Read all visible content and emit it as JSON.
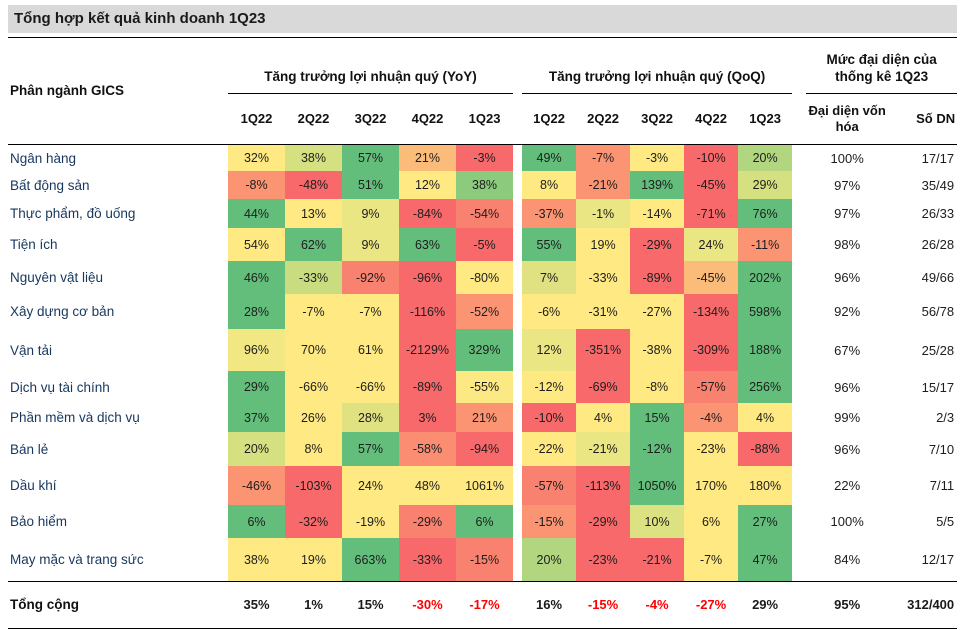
{
  "title": "Tổng hợp kết quả kinh doanh 1Q23",
  "colors": {
    "title_bg": "#D9D9D9",
    "sector_text": "#17375E",
    "negative_total_text": "#FF0000",
    "heatmap_green": "#63BE7B",
    "heatmap_yellow": "#FFE983",
    "heatmap_red": "#F8696B"
  },
  "table": {
    "row_header": "Phân ngành GICS",
    "groups": [
      {
        "label": "Tăng trưởng lợi nhuận quý (YoY)",
        "columns": [
          "1Q22",
          "2Q22",
          "3Q22",
          "4Q22",
          "1Q23"
        ]
      },
      {
        "label": "Tăng trưởng lợi nhuận quý (QoQ)",
        "columns": [
          "1Q22",
          "2Q22",
          "3Q22",
          "4Q22",
          "1Q23"
        ]
      },
      {
        "label": "Mức đại diện của thống kê 1Q23",
        "columns": [
          "Đại diện vốn hóa",
          "Số DN"
        ]
      }
    ],
    "rows": [
      {
        "name": "Ngân hàng",
        "yoy": [
          [
            "32%",
            "#FFE983"
          ],
          [
            "38%",
            "#D5E081"
          ],
          [
            "57%",
            "#63BE7B"
          ],
          [
            "21%",
            "#FBBC79"
          ],
          [
            "-3%",
            "#F8696B"
          ]
        ],
        "qoq": [
          [
            "49%",
            "#63BE7B"
          ],
          [
            "-7%",
            "#FA9473"
          ],
          [
            "-3%",
            "#FFE983"
          ],
          [
            "-10%",
            "#F8696B"
          ],
          [
            "20%",
            "#B1D67F"
          ]
        ],
        "rep": "100%",
        "dn": "17/17"
      },
      {
        "name": "Bất động sản",
        "yoy": [
          [
            "-8%",
            "#FA9473"
          ],
          [
            "-48%",
            "#F8696B"
          ],
          [
            "51%",
            "#63BE7B"
          ],
          [
            "12%",
            "#FFE983"
          ],
          [
            "38%",
            "#8CCB7D"
          ]
        ],
        "qoq": [
          [
            "8%",
            "#FFE983"
          ],
          [
            "-21%",
            "#FA9473"
          ],
          [
            "139%",
            "#63BE7B"
          ],
          [
            "-45%",
            "#F8696B"
          ],
          [
            "29%",
            "#D5E081"
          ]
        ],
        "rep": "97%",
        "dn": "35/49"
      },
      {
        "name": "Thực phẩm, đồ uống",
        "yoy": [
          [
            "44%",
            "#63BE7B"
          ],
          [
            "13%",
            "#FFE983"
          ],
          [
            "9%",
            "#E9E683"
          ],
          [
            "-84%",
            "#F8696B"
          ],
          [
            "-54%",
            "#F9816F"
          ]
        ],
        "qoq": [
          [
            "-37%",
            "#FA9473"
          ],
          [
            "-1%",
            "#E9E683"
          ],
          [
            "-14%",
            "#FFE983"
          ],
          [
            "-71%",
            "#F8696B"
          ],
          [
            "76%",
            "#63BE7B"
          ]
        ],
        "rep": "97%",
        "dn": "26/33"
      },
      {
        "name": "Tiện ích",
        "yoy": [
          [
            "54%",
            "#FFE983"
          ],
          [
            "62%",
            "#63BE7B"
          ],
          [
            "9%",
            "#E9E683"
          ],
          [
            "63%",
            "#63BE7B"
          ],
          [
            "-5%",
            "#F8696B"
          ]
        ],
        "qoq": [
          [
            "55%",
            "#63BE7B"
          ],
          [
            "19%",
            "#FFE983"
          ],
          [
            "-29%",
            "#F8696B"
          ],
          [
            "24%",
            "#E9E683"
          ],
          [
            "-11%",
            "#FA9473"
          ]
        ],
        "rep": "98%",
        "dn": "26/28"
      },
      {
        "name": "Nguyên vật liệu",
        "yoy": [
          [
            "46%",
            "#63BE7B"
          ],
          [
            "-33%",
            "#C9DC80"
          ],
          [
            "-92%",
            "#F9816F"
          ],
          [
            "-96%",
            "#F8696B"
          ],
          [
            "-80%",
            "#FFE983"
          ]
        ],
        "qoq": [
          [
            "7%",
            "#E0E282"
          ],
          [
            "-33%",
            "#FFE983"
          ],
          [
            "-89%",
            "#F8696B"
          ],
          [
            "-45%",
            "#FBBC79"
          ],
          [
            "202%",
            "#63BE7B"
          ]
        ],
        "rep": "96%",
        "dn": "49/66"
      },
      {
        "name": "Xây dựng cơ bản",
        "yoy": [
          [
            "28%",
            "#63BE7B"
          ],
          [
            "-7%",
            "#FFE983"
          ],
          [
            "-7%",
            "#FFE983"
          ],
          [
            "-116%",
            "#F8696B"
          ],
          [
            "-52%",
            "#FA9473"
          ]
        ],
        "qoq": [
          [
            "-6%",
            "#FFE983"
          ],
          [
            "-31%",
            "#FFE983"
          ],
          [
            "-27%",
            "#FFE983"
          ],
          [
            "-134%",
            "#F8696B"
          ],
          [
            "598%",
            "#63BE7B"
          ]
        ],
        "rep": "92%",
        "dn": "56/78"
      },
      {
        "name": "Vận tải",
        "yoy": [
          [
            "96%",
            "#F1E884"
          ],
          [
            "70%",
            "#FFE983"
          ],
          [
            "61%",
            "#FFE983"
          ],
          [
            "-2129%",
            "#F8696B"
          ],
          [
            "329%",
            "#63BE7B"
          ]
        ],
        "qoq": [
          [
            "12%",
            "#E9E683"
          ],
          [
            "-351%",
            "#F8696B"
          ],
          [
            "-38%",
            "#FFE983"
          ],
          [
            "-309%",
            "#F8696B"
          ],
          [
            "188%",
            "#63BE7B"
          ]
        ],
        "rep": "67%",
        "dn": "25/28"
      },
      {
        "name": "Dịch vụ tài chính",
        "yoy": [
          [
            "29%",
            "#63BE7B"
          ],
          [
            "-66%",
            "#FFE983"
          ],
          [
            "-66%",
            "#FFE983"
          ],
          [
            "-89%",
            "#F8696B"
          ],
          [
            "-55%",
            "#FDE984"
          ]
        ],
        "qoq": [
          [
            "-12%",
            "#FFE983"
          ],
          [
            "-69%",
            "#F8696B"
          ],
          [
            "-8%",
            "#FFE983"
          ],
          [
            "-57%",
            "#F9816F"
          ],
          [
            "256%",
            "#63BE7B"
          ]
        ],
        "rep": "96%",
        "dn": "15/17"
      },
      {
        "name": "Phần mềm và dịch vụ",
        "yoy": [
          [
            "37%",
            "#63BE7B"
          ],
          [
            "26%",
            "#FFE983"
          ],
          [
            "28%",
            "#E0E282"
          ],
          [
            "3%",
            "#F8696B"
          ],
          [
            "21%",
            "#FA9473"
          ]
        ],
        "qoq": [
          [
            "-10%",
            "#F8696B"
          ],
          [
            "4%",
            "#FFE983"
          ],
          [
            "15%",
            "#63BE7B"
          ],
          [
            "-4%",
            "#FA9473"
          ],
          [
            "4%",
            "#FFE983"
          ]
        ],
        "rep": "99%",
        "dn": "2/3"
      },
      {
        "name": "Bán lẻ",
        "yoy": [
          [
            "20%",
            "#D5E081"
          ],
          [
            "8%",
            "#FFE983"
          ],
          [
            "57%",
            "#63BE7B"
          ],
          [
            "-58%",
            "#FA8D72"
          ],
          [
            "-94%",
            "#F8696B"
          ]
        ],
        "qoq": [
          [
            "-22%",
            "#FFE983"
          ],
          [
            "-21%",
            "#E9E683"
          ],
          [
            "-12%",
            "#63BE7B"
          ],
          [
            "-23%",
            "#FFE983"
          ],
          [
            "-88%",
            "#F8696B"
          ]
        ],
        "rep": "96%",
        "dn": "7/10"
      },
      {
        "name": "Dầu khí",
        "yoy": [
          [
            "-46%",
            "#FA9473"
          ],
          [
            "-103%",
            "#F8696B"
          ],
          [
            "24%",
            "#FFE983"
          ],
          [
            "48%",
            "#FFE983"
          ],
          [
            "1061%",
            "#FFE983"
          ]
        ],
        "qoq": [
          [
            "-57%",
            "#F9816F"
          ],
          [
            "-113%",
            "#F8696B"
          ],
          [
            "1050%",
            "#63BE7B"
          ],
          [
            "170%",
            "#FFE983"
          ],
          [
            "180%",
            "#FFE983"
          ]
        ],
        "rep": "22%",
        "dn": "7/11"
      },
      {
        "name": "Bảo hiểm",
        "yoy": [
          [
            "6%",
            "#63BE7B"
          ],
          [
            "-32%",
            "#F8696B"
          ],
          [
            "-19%",
            "#FFE983"
          ],
          [
            "-29%",
            "#F9816F"
          ],
          [
            "6%",
            "#63BE7B"
          ]
        ],
        "qoq": [
          [
            "-15%",
            "#FA9473"
          ],
          [
            "-29%",
            "#F8696B"
          ],
          [
            "10%",
            "#DCE181"
          ],
          [
            "6%",
            "#FFE983"
          ],
          [
            "27%",
            "#63BE7B"
          ]
        ],
        "rep": "100%",
        "dn": "5/5"
      },
      {
        "name": "May mặc và trang sức",
        "yoy": [
          [
            "38%",
            "#FFE983"
          ],
          [
            "19%",
            "#FFE983"
          ],
          [
            "663%",
            "#63BE7B"
          ],
          [
            "-33%",
            "#F8696B"
          ],
          [
            "-15%",
            "#F9816F"
          ]
        ],
        "qoq": [
          [
            "20%",
            "#B1D67F"
          ],
          [
            "-23%",
            "#F8696B"
          ],
          [
            "-21%",
            "#F8696B"
          ],
          [
            "-7%",
            "#FFE983"
          ],
          [
            "47%",
            "#63BE7B"
          ]
        ],
        "rep": "84%",
        "dn": "12/17"
      }
    ],
    "footer": {
      "label": "Tổng cộng",
      "yoy": [
        "35%",
        "1%",
        "15%",
        "-30%",
        "-17%"
      ],
      "qoq": [
        "16%",
        "-15%",
        "-4%",
        "-27%",
        "29%"
      ],
      "rep": "95%",
      "dn": "312/400"
    }
  },
  "chart_data": {
    "type": "heatmap",
    "title": "Tổng hợp kết quả kinh doanh 1Q23",
    "colormap": "red-yellow-green",
    "row_labels": [
      "Ngân hàng",
      "Bất động sản",
      "Thực phẩm, đồ uống",
      "Tiện ích",
      "Nguyên vật liệu",
      "Xây dựng cơ bản",
      "Vận tải",
      "Dịch vụ tài chính",
      "Phần mềm và dịch vụ",
      "Bán lẻ",
      "Dầu khí",
      "Bảo hiểm",
      "May mặc và trang sức"
    ],
    "column_groups": [
      "Tăng trưởng lợi nhuận quý (YoY)",
      "Tăng trưởng lợi nhuận quý (QoQ)",
      "Mức đại diện của thống kê 1Q23"
    ],
    "columns": [
      "1Q22",
      "2Q22",
      "3Q22",
      "4Q22",
      "1Q23"
    ],
    "yoy_values_pct": [
      [
        32,
        38,
        57,
        21,
        -3
      ],
      [
        -8,
        -48,
        51,
        12,
        38
      ],
      [
        44,
        13,
        9,
        -84,
        -54
      ],
      [
        54,
        62,
        9,
        63,
        -5
      ],
      [
        46,
        -33,
        -92,
        -96,
        -80
      ],
      [
        28,
        -7,
        -7,
        -116,
        -52
      ],
      [
        96,
        70,
        61,
        -2129,
        329
      ],
      [
        29,
        -66,
        -66,
        -89,
        -55
      ],
      [
        37,
        26,
        28,
        3,
        21
      ],
      [
        20,
        8,
        57,
        -58,
        -94
      ],
      [
        -46,
        -103,
        24,
        48,
        1061
      ],
      [
        6,
        -32,
        -19,
        -29,
        6
      ],
      [
        38,
        19,
        663,
        -33,
        -15
      ]
    ],
    "qoq_values_pct": [
      [
        49,
        -7,
        -3,
        -10,
        20
      ],
      [
        8,
        -21,
        139,
        -45,
        29
      ],
      [
        -37,
        -1,
        -14,
        -71,
        76
      ],
      [
        55,
        19,
        -29,
        24,
        -11
      ],
      [
        7,
        -33,
        -89,
        -45,
        202
      ],
      [
        -6,
        -31,
        -27,
        -134,
        598
      ],
      [
        12,
        -351,
        -38,
        -309,
        188
      ],
      [
        -12,
        -69,
        -8,
        -57,
        256
      ],
      [
        -10,
        4,
        15,
        -4,
        4
      ],
      [
        -22,
        -21,
        -12,
        -23,
        -88
      ],
      [
        -57,
        -113,
        1050,
        170,
        180
      ],
      [
        -15,
        -29,
        10,
        6,
        27
      ],
      [
        20,
        -23,
        -21,
        -7,
        47
      ]
    ],
    "market_cap_representation_pct": [
      100,
      97,
      97,
      98,
      96,
      92,
      67,
      96,
      99,
      96,
      22,
      100,
      84
    ],
    "company_counts": [
      "17/17",
      "35/49",
      "26/33",
      "26/28",
      "49/66",
      "56/78",
      "25/28",
      "15/17",
      "2/3",
      "7/10",
      "7/11",
      "5/5",
      "12/17"
    ],
    "totals": {
      "yoy_pct": [
        35,
        1,
        15,
        -30,
        -17
      ],
      "qoq_pct": [
        16,
        -15,
        -4,
        -27,
        29
      ],
      "representation_pct": 95,
      "companies": "312/400"
    }
  }
}
